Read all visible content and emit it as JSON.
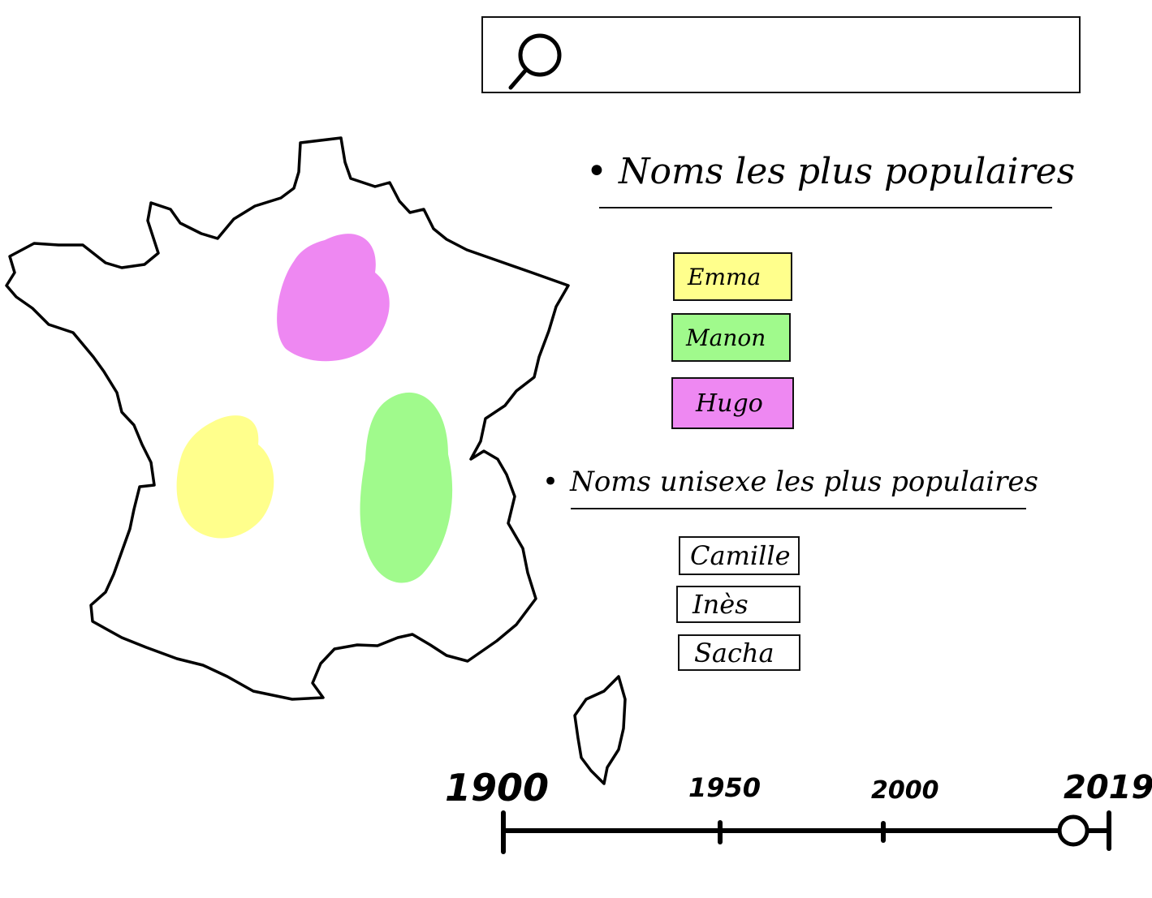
{
  "search": {
    "value": "",
    "icon": "search-icon"
  },
  "map": {
    "region_colors": {
      "yellow": "#FFFF8C",
      "green": "#A0FA8C",
      "pink": "#EE88F2"
    }
  },
  "popular_names": {
    "title": "Noms les plus populaires",
    "items": [
      {
        "label": "Emma",
        "color": "#FFFF8C"
      },
      {
        "label": "Manon",
        "color": "#A0FA8C"
      },
      {
        "label": "Hugo",
        "color": "#EE88F2"
      }
    ]
  },
  "unisex_names": {
    "title": "Noms unisexe les plus populaires",
    "items": [
      {
        "label": "Camille"
      },
      {
        "label": "Inès"
      },
      {
        "label": "Sacha"
      }
    ]
  },
  "timeline": {
    "labels": [
      "1900",
      "1950",
      "2000",
      "2019"
    ],
    "start": 1900,
    "end": 2019,
    "selected_year": 2012
  }
}
